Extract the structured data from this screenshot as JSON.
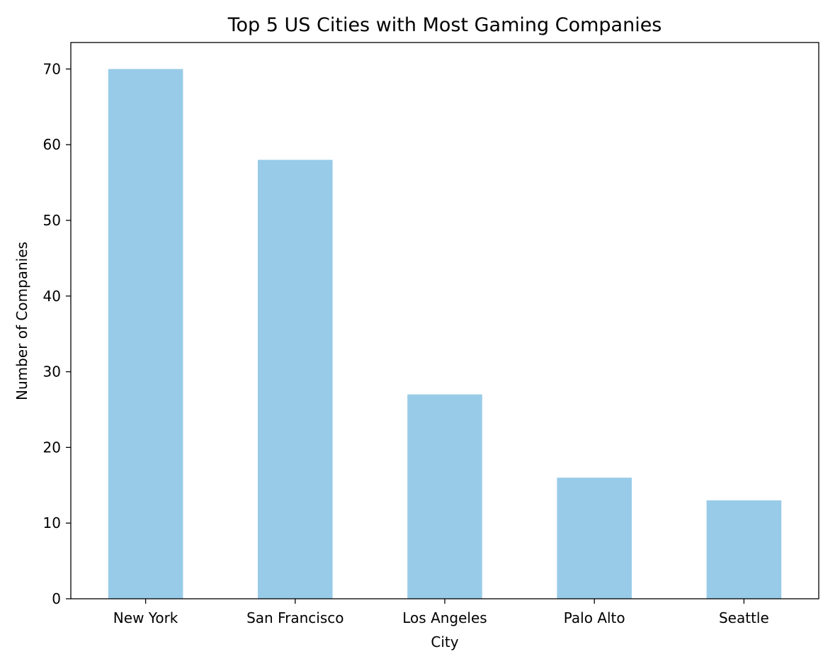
{
  "chart_data": {
    "type": "bar",
    "title": "Top 5 US Cities with Most Gaming Companies",
    "xlabel": "City",
    "ylabel": "Number of Companies",
    "categories": [
      "New York",
      "San Francisco",
      "Los Angeles",
      "Palo Alto",
      "Seattle"
    ],
    "values": [
      70,
      58,
      27,
      16,
      13
    ],
    "ylim": [
      0,
      73.5
    ],
    "yticks": [
      0,
      10,
      20,
      30,
      40,
      50,
      60,
      70
    ],
    "bar_color": "#98cbe8",
    "grid": false,
    "legend": false
  }
}
